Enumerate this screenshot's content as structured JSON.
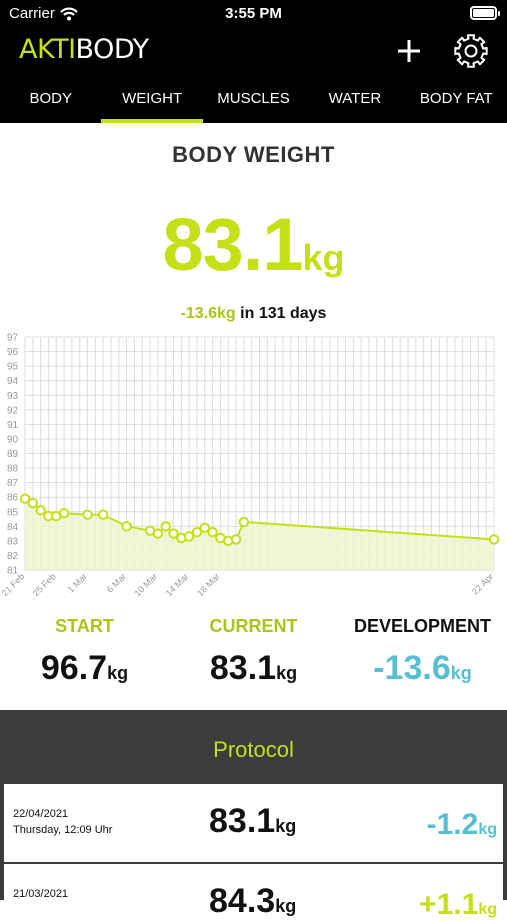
{
  "status_bar": {
    "carrier": "Carrier",
    "time": "3:55 PM"
  },
  "app": {
    "brand_part1": "AKTI",
    "brand_part2": "BODY",
    "accent": "#c5e019",
    "blue": "#58bfd3",
    "icons": [
      "plus-icon",
      "gear-icon",
      "wifi-icon",
      "battery-icon"
    ]
  },
  "tabs": [
    {
      "label": "BODY",
      "active": false
    },
    {
      "label": "WEIGHT",
      "active": true
    },
    {
      "label": "MUSCLES",
      "active": false
    },
    {
      "label": "WATER",
      "active": false
    },
    {
      "label": "BODY FAT",
      "active": false
    }
  ],
  "weight": {
    "title": "BODY WEIGHT",
    "current_value": "83.1",
    "unit": "kg",
    "delta_value": "-13.6kg",
    "delta_period": "in 131 days"
  },
  "chart_data": {
    "type": "line",
    "ylim": [
      81,
      97
    ],
    "y_ticks": [
      "81",
      "82",
      "83",
      "84",
      "85",
      "86",
      "87",
      "88",
      "89",
      "90",
      "91",
      "92",
      "93",
      "94",
      "95",
      "96",
      "97"
    ],
    "x_start": "2021-02-21",
    "x_end": "2021-04-22",
    "x_tick_labels": [
      {
        "label": "21 Feb",
        "date": "2021-02-21"
      },
      {
        "label": "25 Feb",
        "date": "2021-02-25"
      },
      {
        "label": "1 Mar",
        "date": "2021-03-01"
      },
      {
        "label": "6 Mar",
        "date": "2021-03-06"
      },
      {
        "label": "10 Mar",
        "date": "2021-03-10"
      },
      {
        "label": "14 Mar",
        "date": "2021-03-14"
      },
      {
        "label": "18 Mar",
        "date": "2021-03-18"
      },
      {
        "label": "22 Apr",
        "date": "2021-04-22"
      }
    ],
    "points": [
      {
        "x": "2021-02-21",
        "y": 85.9
      },
      {
        "x": "2021-02-22",
        "y": 85.6
      },
      {
        "x": "2021-02-23",
        "y": 85.1
      },
      {
        "x": "2021-02-24",
        "y": 84.7
      },
      {
        "x": "2021-02-25",
        "y": 84.7
      },
      {
        "x": "2021-02-26",
        "y": 84.9
      },
      {
        "x": "2021-03-01",
        "y": 84.8
      },
      {
        "x": "2021-03-03",
        "y": 84.8
      },
      {
        "x": "2021-03-06",
        "y": 84.0
      },
      {
        "x": "2021-03-09",
        "y": 83.7
      },
      {
        "x": "2021-03-10",
        "y": 83.5
      },
      {
        "x": "2021-03-11",
        "y": 84.0
      },
      {
        "x": "2021-03-12",
        "y": 83.5
      },
      {
        "x": "2021-03-13",
        "y": 83.2
      },
      {
        "x": "2021-03-14",
        "y": 83.3
      },
      {
        "x": "2021-03-15",
        "y": 83.6
      },
      {
        "x": "2021-03-16",
        "y": 83.9
      },
      {
        "x": "2021-03-17",
        "y": 83.6
      },
      {
        "x": "2021-03-18",
        "y": 83.2
      },
      {
        "x": "2021-03-19",
        "y": 83.0
      },
      {
        "x": "2021-03-20",
        "y": 83.1
      },
      {
        "x": "2021-03-21",
        "y": 84.3
      },
      {
        "x": "2021-04-22",
        "y": 83.1
      }
    ],
    "line_color": "#c5e019",
    "grid": true
  },
  "stats": {
    "start": {
      "label": "START",
      "value": "96.7",
      "unit": "kg"
    },
    "current": {
      "label": "CURRENT",
      "value": "83.1",
      "unit": "kg"
    },
    "development": {
      "label": "DEVELOPMENT",
      "value": "-13.6",
      "unit": "kg"
    }
  },
  "protocol": {
    "title": "Protocol",
    "entries": [
      {
        "date": "22/04/2021",
        "subtitle": "Thursday, 12:09 Uhr",
        "weight": "83.1",
        "unit": "kg",
        "change": "-1.2",
        "change_unit": "kg",
        "change_color": "#58bfd3"
      },
      {
        "date": "21/03/2021",
        "subtitle": "",
        "weight": "84.3",
        "unit": "kg",
        "change": "+1.1",
        "change_unit": "kg",
        "change_color": "#c5e019"
      }
    ]
  }
}
